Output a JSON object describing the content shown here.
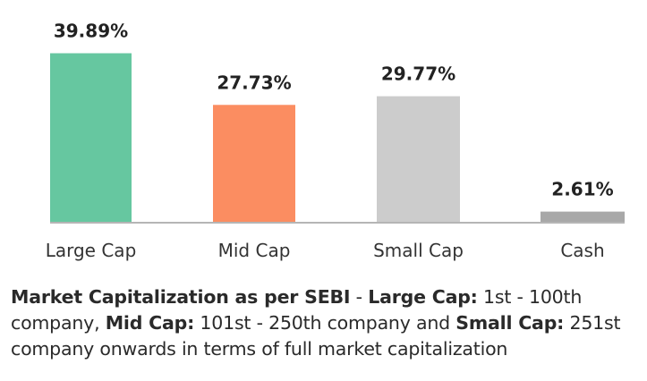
{
  "chart_data": {
    "type": "bar",
    "categories": [
      "Large Cap",
      "Mid Cap",
      "Small Cap",
      "Cash"
    ],
    "values": [
      39.89,
      27.73,
      29.77,
      2.61
    ],
    "data_labels": [
      "39.89%",
      "27.73%",
      "29.77%",
      "2.61%"
    ],
    "colors": [
      "#66c7a0",
      "#fb8d61",
      "#cccccc",
      "#a8a8a8"
    ],
    "axis_color": "#b5b5b5",
    "title": "",
    "xlabel": "",
    "ylabel": "",
    "ylim": [
      0,
      40
    ],
    "grid": false,
    "legend": "none"
  },
  "note": {
    "part1_bold": "Market Capitalization as per SEBI",
    "part2": " - ",
    "part3_bold": "Large Cap:",
    "part4": " 1st - 100th company, ",
    "part5_bold": "Mid Cap:",
    "part6": " 101st - 250th company and ",
    "part7_bold": "Small Cap:",
    "part8": " 251st company onwards in terms of full market capitalization"
  }
}
